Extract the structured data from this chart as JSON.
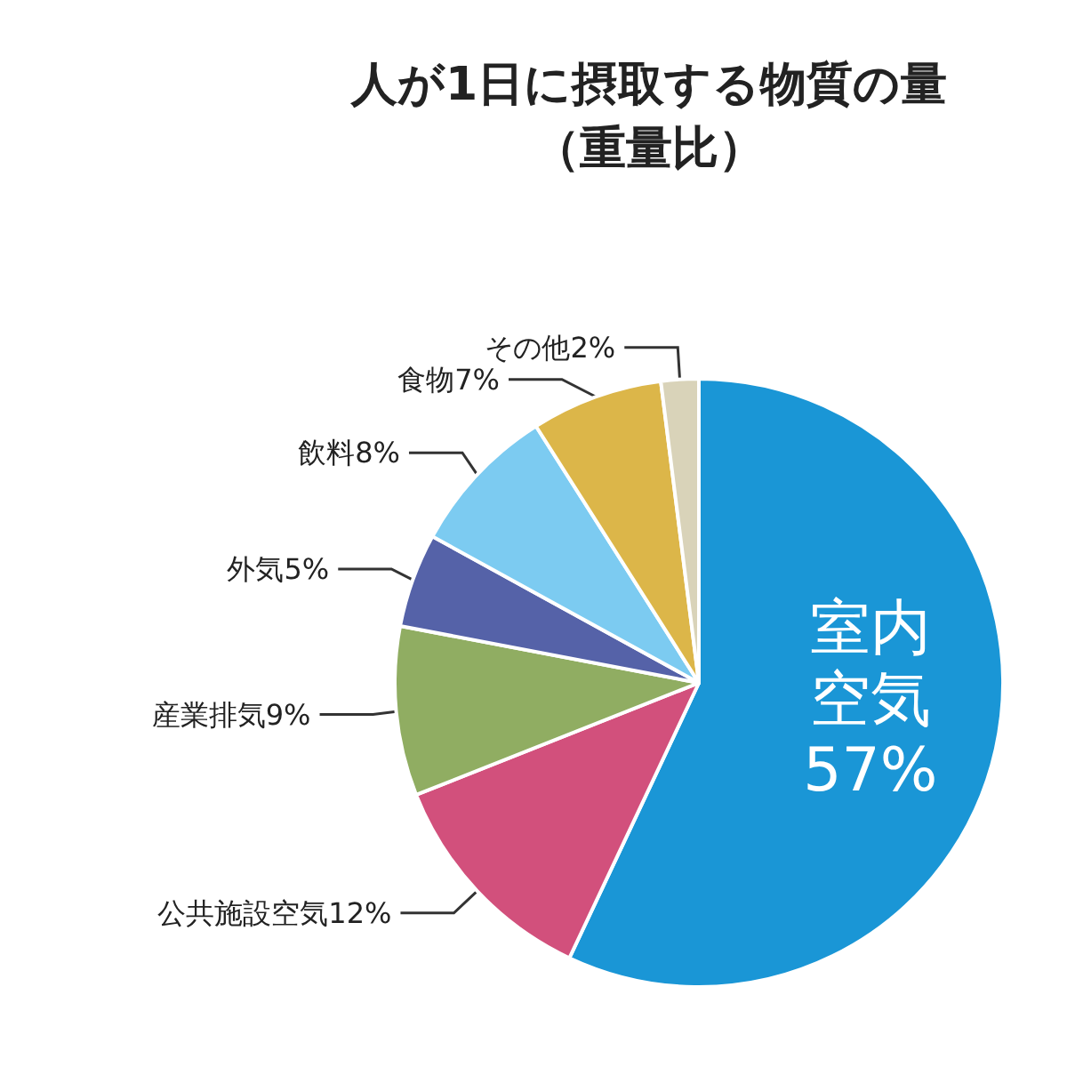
{
  "chart_data": {
    "type": "pie",
    "title": "人が1日に摂取する物質の量",
    "subtitle": "（重量比）",
    "categories": [
      "室内空気",
      "公共施設空気",
      "産業排気",
      "外気",
      "飲料",
      "食物",
      "その他"
    ],
    "values": [
      57,
      12,
      9,
      5,
      8,
      7,
      2
    ],
    "colors": [
      "#1a96d6",
      "#d2507c",
      "#90ad62",
      "#5562a8",
      "#7ccbf1",
      "#dcb649",
      "#d9d3b9"
    ],
    "value_labels": [
      "57%",
      "12%",
      "9%",
      "5%",
      "8%",
      "7%",
      "2%"
    ],
    "legend": false
  }
}
